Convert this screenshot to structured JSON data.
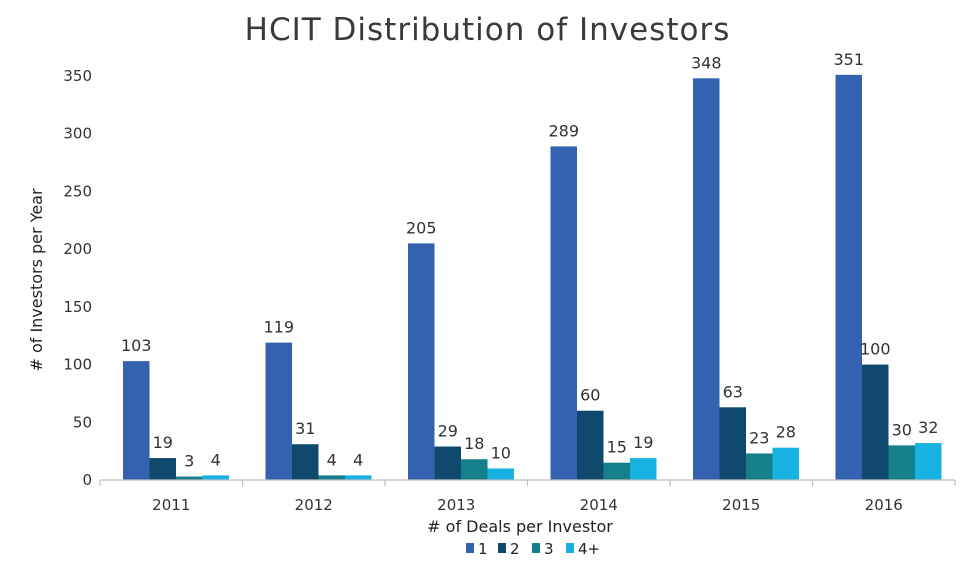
{
  "chart_data": {
    "type": "bar",
    "title": "HCIT Distribution of Investors",
    "xlabel": "# of Deals per Investor",
    "ylabel": "# of Investors per Year",
    "categories": [
      "2011",
      "2012",
      "2013",
      "2014",
      "2015",
      "2016"
    ],
    "series": [
      {
        "name": "1",
        "color": "#3461b0",
        "values": [
          103,
          119,
          205,
          289,
          348,
          351
        ]
      },
      {
        "name": "2",
        "color": "#0f4a6e",
        "values": [
          19,
          31,
          29,
          60,
          63,
          100
        ]
      },
      {
        "name": "3",
        "color": "#15808c",
        "values": [
          3,
          4,
          18,
          15,
          23,
          30
        ]
      },
      {
        "name": "4+",
        "color": "#17b1e2",
        "values": [
          4,
          4,
          10,
          19,
          28,
          32
        ]
      }
    ],
    "ylim": [
      0,
      350
    ],
    "yticks": [
      0,
      50,
      100,
      150,
      200,
      250,
      300,
      350
    ],
    "grid": false,
    "legend_position": "bottom"
  }
}
